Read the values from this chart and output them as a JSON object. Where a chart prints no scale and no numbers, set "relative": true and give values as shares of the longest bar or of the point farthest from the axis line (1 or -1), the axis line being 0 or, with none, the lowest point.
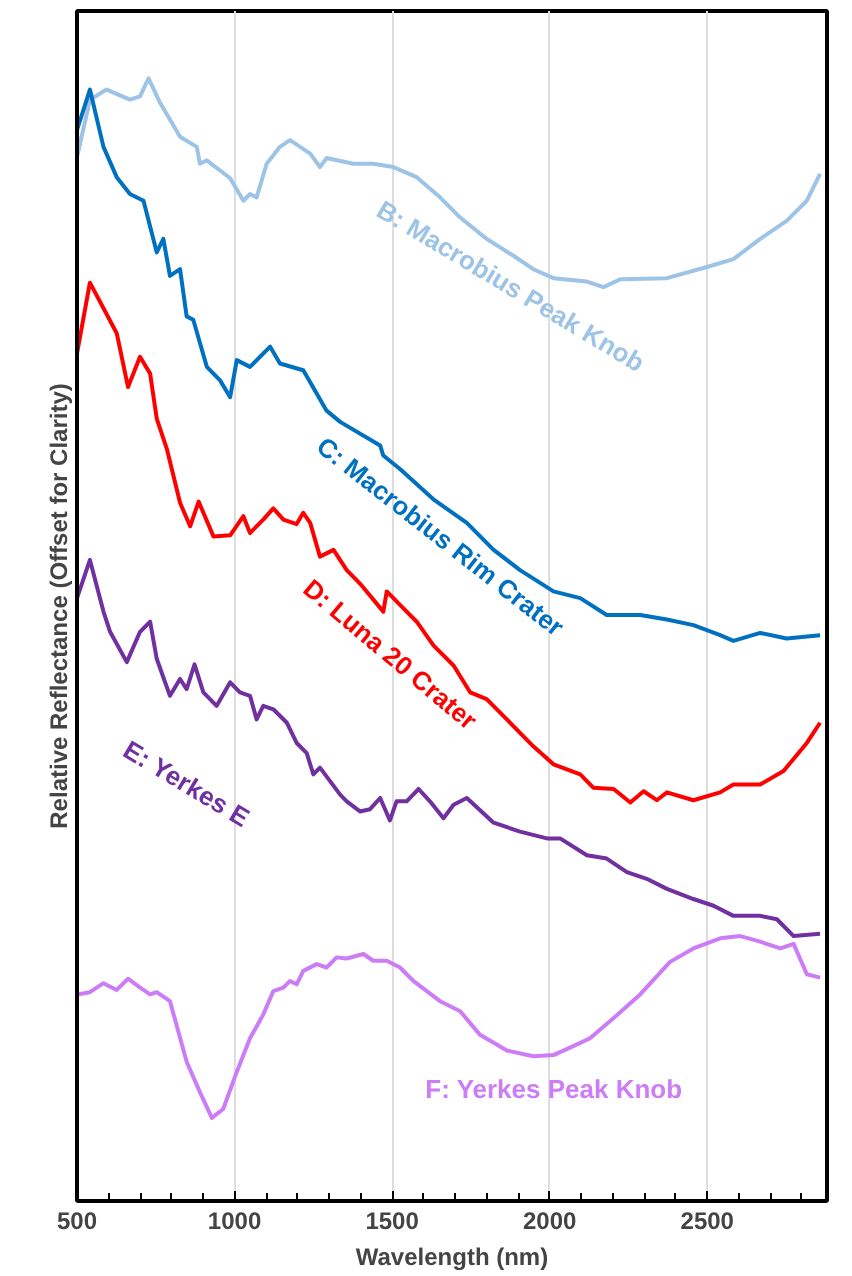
{
  "chart_data": {
    "type": "line",
    "relative": true,
    "xlabel": "Wavelength (nm)",
    "ylabel": "Relative Reflectance (Offset for Clarity)",
    "xlim": [
      500,
      2880
    ],
    "xticks": [
      500,
      1000,
      1500,
      2000,
      2500
    ],
    "grid": "x",
    "legend": false,
    "marker": "none",
    "line_style": "solid",
    "series": [
      {
        "name": "B: Macrobius Peak Knob",
        "color": "#9dc3e6",
        "x": [
          500,
          541,
          594,
          668,
          700,
          727,
          764,
          827,
          880,
          890,
          912,
          986,
          1028,
          1049,
          1070,
          1102,
          1144,
          1176,
          1240,
          1271,
          1292,
          1377,
          1440,
          1504,
          1578,
          1652,
          1716,
          1800,
          1885,
          1948,
          2012,
          2118,
          2171,
          2224,
          2372,
          2499,
          2583,
          2668,
          2752,
          2816,
          2858
        ],
        "values": [
          0.93,
          0.981,
          0.99,
          0.981,
          0.984,
          1,
          0.978,
          0.948,
          0.939,
          0.924,
          0.927,
          0.911,
          0.891,
          0.897,
          0.894,
          0.924,
          0.939,
          0.945,
          0.933,
          0.921,
          0.929,
          0.924,
          0.924,
          0.921,
          0.912,
          0.894,
          0.876,
          0.857,
          0.842,
          0.83,
          0.822,
          0.819,
          0.814,
          0.821,
          0.822,
          0.832,
          0.839,
          0.857,
          0.873,
          0.891,
          0.915
        ]
      },
      {
        "name": "C: Macrobius Rim Crater",
        "color": "#0070c0",
        "x": [
          500,
          541,
          584,
          626,
          668,
          711,
          753,
          774,
          795,
          827,
          848,
          869,
          912,
          954,
          986,
          1007,
          1049,
          1113,
          1144,
          1218,
          1261,
          1292,
          1335,
          1462,
          1472,
          1525,
          1631,
          1737,
          1822,
          1906,
          2012,
          2097,
          2181,
          2287,
          2372,
          2456,
          2541,
          2583,
          2668,
          2752,
          2858
        ],
        "values": [
          0.954,
          0.99,
          0.939,
          0.912,
          0.897,
          0.891,
          0.845,
          0.857,
          0.824,
          0.83,
          0.788,
          0.785,
          0.743,
          0.731,
          0.716,
          0.749,
          0.743,
          0.761,
          0.746,
          0.74,
          0.719,
          0.704,
          0.694,
          0.673,
          0.664,
          0.652,
          0.625,
          0.604,
          0.58,
          0.562,
          0.543,
          0.537,
          0.522,
          0.522,
          0.518,
          0.513,
          0.504,
          0.499,
          0.506,
          0.501,
          0.504
        ]
      },
      {
        "name": "D: Luna 20 Crater",
        "color": "#ff0000",
        "x": [
          500,
          541,
          626,
          662,
          700,
          732,
          753,
          785,
          827,
          859,
          886,
          933,
          986,
          1028,
          1049,
          1091,
          1123,
          1155,
          1197,
          1218,
          1240,
          1271,
          1314,
          1356,
          1398,
          1472,
          1483,
          1525,
          1578,
          1631,
          1695,
          1748,
          1800,
          1864,
          1948,
          2012,
          2097,
          2139,
          2203,
          2256,
          2298,
          2340,
          2372,
          2456,
          2541,
          2583,
          2668,
          2742,
          2816,
          2858
        ],
        "values": [
          0.755,
          0.818,
          0.773,
          0.725,
          0.752,
          0.737,
          0.697,
          0.67,
          0.622,
          0.601,
          0.623,
          0.592,
          0.593,
          0.61,
          0.595,
          0.607,
          0.617,
          0.607,
          0.603,
          0.613,
          0.604,
          0.574,
          0.58,
          0.562,
          0.55,
          0.525,
          0.543,
          0.531,
          0.516,
          0.495,
          0.477,
          0.453,
          0.447,
          0.429,
          0.405,
          0.389,
          0.38,
          0.368,
          0.367,
          0.355,
          0.365,
          0.357,
          0.364,
          0.357,
          0.364,
          0.371,
          0.371,
          0.383,
          0.408,
          0.426
        ]
      },
      {
        "name": "E:  Yerkes E",
        "color": "#7030a0",
        "x": [
          500,
          541,
          584,
          605,
          658,
          700,
          732,
          753,
          795,
          827,
          848,
          873,
          901,
          943,
          986,
          1017,
          1049,
          1070,
          1091,
          1123,
          1166,
          1197,
          1229,
          1250,
          1271,
          1303,
          1335,
          1356,
          1398,
          1430,
          1462,
          1493,
          1514,
          1546,
          1584,
          1620,
          1663,
          1695,
          1737,
          1822,
          1906,
          1991,
          2033,
          2118,
          2181,
          2245,
          2308,
          2372,
          2456,
          2520,
          2583,
          2668,
          2721,
          2774,
          2858
        ],
        "values": [
          0.537,
          0.571,
          0.525,
          0.507,
          0.48,
          0.507,
          0.516,
          0.483,
          0.45,
          0.465,
          0.456,
          0.478,
          0.453,
          0.441,
          0.462,
          0.453,
          0.45,
          0.429,
          0.441,
          0.438,
          0.426,
          0.408,
          0.399,
          0.38,
          0.386,
          0.374,
          0.362,
          0.356,
          0.347,
          0.349,
          0.359,
          0.339,
          0.356,
          0.356,
          0.367,
          0.356,
          0.341,
          0.353,
          0.359,
          0.337,
          0.329,
          0.323,
          0.323,
          0.308,
          0.305,
          0.293,
          0.287,
          0.278,
          0.269,
          0.263,
          0.254,
          0.254,
          0.251,
          0.236,
          0.238
        ]
      },
      {
        "name": "F:  Yerkes Peak Knob",
        "color": "#cc7cf7",
        "x": [
          500,
          541,
          584,
          626,
          662,
          700,
          732,
          753,
          795,
          848,
          890,
          928,
          964,
          1007,
          1049,
          1091,
          1123,
          1155,
          1176,
          1197,
          1218,
          1261,
          1292,
          1324,
          1356,
          1409,
          1440,
          1483,
          1525,
          1567,
          1652,
          1716,
          1779,
          1864,
          1948,
          2012,
          2075,
          2128,
          2203,
          2287,
          2382,
          2456,
          2541,
          2605,
          2668,
          2732,
          2774,
          2816,
          2858
        ],
        "values": [
          0.184,
          0.186,
          0.194,
          0.188,
          0.198,
          0.19,
          0.184,
          0.186,
          0.178,
          0.124,
          0.097,
          0.074,
          0.082,
          0.115,
          0.145,
          0.166,
          0.187,
          0.19,
          0.196,
          0.193,
          0.205,
          0.211,
          0.208,
          0.217,
          0.216,
          0.22,
          0.214,
          0.214,
          0.208,
          0.196,
          0.178,
          0.169,
          0.148,
          0.134,
          0.129,
          0.13,
          0.138,
          0.145,
          0.163,
          0.184,
          0.213,
          0.225,
          0.234,
          0.236,
          0.231,
          0.225,
          0.229,
          0.202,
          0.199
        ]
      }
    ]
  }
}
